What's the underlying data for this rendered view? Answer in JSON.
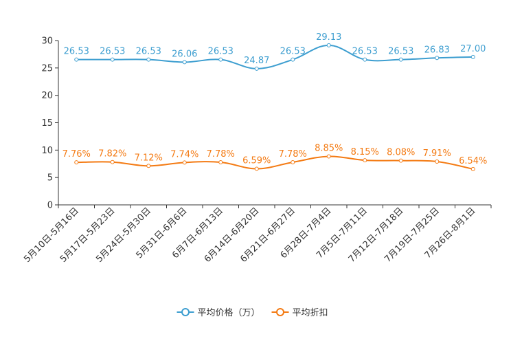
{
  "chart_data": {
    "type": "line",
    "title": "",
    "xlabel": "",
    "ylabel": "",
    "ylim": [
      0,
      30
    ],
    "yticks": [
      0,
      5,
      10,
      15,
      20,
      25,
      30
    ],
    "categories": [
      "5月10日-5月16日",
      "5月17日-5月23日",
      "5月24日-5月30日",
      "5月31日-6月6日",
      "6月7日-6月13日",
      "6月14日-6月20日",
      "6月21日-6月27日",
      "6月28日-7月4日",
      "7月5日-7月11日",
      "7月12日-7月18日",
      "7月19日-7月25日",
      "7月26日-8月1日"
    ],
    "series": [
      {
        "name": "平均价格（万）",
        "color": "#3d9ed0",
        "values": [
          26.53,
          26.53,
          26.53,
          26.06,
          26.53,
          24.87,
          26.53,
          29.13,
          26.53,
          26.53,
          26.83,
          27.0
        ],
        "labels": [
          "26.53",
          "26.53",
          "26.53",
          "26.06",
          "26.53",
          "24.87",
          "26.53",
          "29.13",
          "26.53",
          "26.53",
          "26.83",
          "27.00"
        ]
      },
      {
        "name": "平均折扣",
        "color": "#f47a12",
        "values": [
          7.76,
          7.82,
          7.12,
          7.74,
          7.78,
          6.59,
          7.78,
          8.85,
          8.15,
          8.08,
          7.91,
          6.54
        ],
        "labels": [
          "7.76%",
          "7.82%",
          "7.12%",
          "7.74%",
          "7.78%",
          "6.59%",
          "7.78%",
          "8.85%",
          "8.15%",
          "8.08%",
          "7.91%",
          "6.54%"
        ]
      }
    ],
    "legend_position": "bottom-center"
  }
}
